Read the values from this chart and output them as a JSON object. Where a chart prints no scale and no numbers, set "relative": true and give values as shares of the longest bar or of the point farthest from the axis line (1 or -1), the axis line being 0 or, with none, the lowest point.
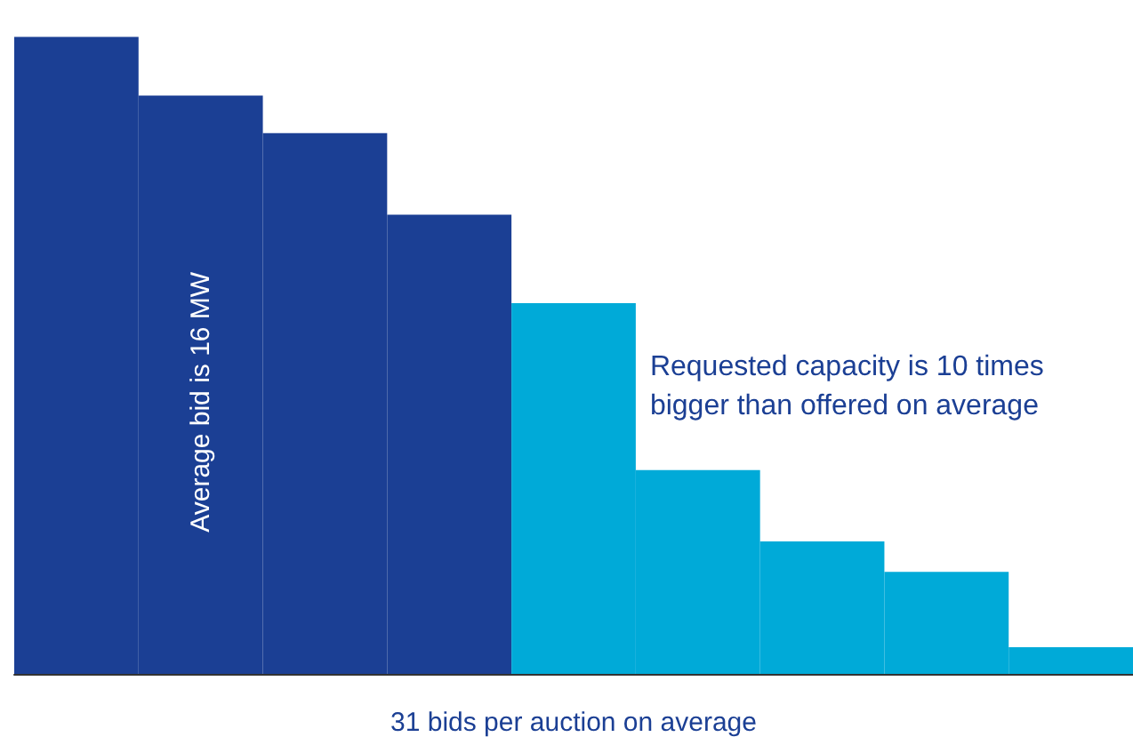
{
  "chart_data": {
    "type": "bar",
    "relative": true,
    "categories": [
      null,
      null,
      null,
      null,
      null,
      null,
      null,
      null,
      null
    ],
    "values": [
      1,
      0.908,
      0.849,
      0.721,
      0.582,
      0.32,
      0.208,
      0.16,
      0.042
    ],
    "colors": [
      "#1b3f94",
      "#1b3f94",
      "#1b3f94",
      "#1b3f94",
      "#00aad8",
      "#00aad8",
      "#00aad8",
      "#00aad8",
      "#00aad8"
    ],
    "xlabel": "31 bids per auction on average",
    "annotations": [
      "Average bid is 16 MW",
      "Requested capacity is 10 times bigger than offered on average"
    ],
    "grid": false
  }
}
